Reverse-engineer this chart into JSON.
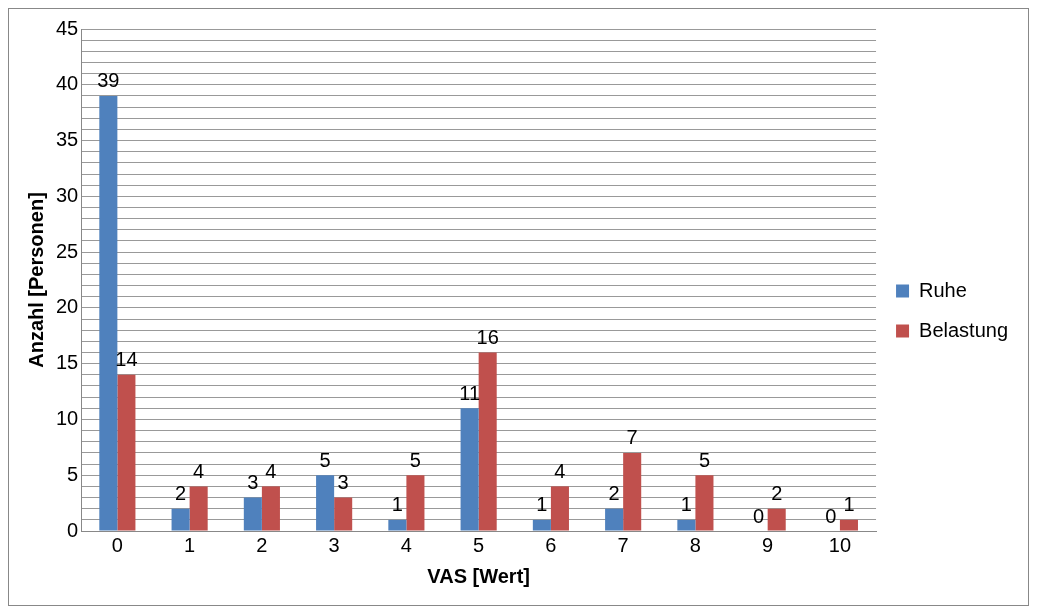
{
  "chart_data": {
    "type": "bar",
    "xlabel": "VAS [Wert]",
    "ylabel": "Anzahl [Personen]",
    "categories": [
      "0",
      "1",
      "2",
      "3",
      "4",
      "5",
      "6",
      "7",
      "8",
      "9",
      "10"
    ],
    "series": [
      {
        "name": "Ruhe",
        "color": "#4f81bd",
        "values": [
          39,
          2,
          3,
          5,
          1,
          11,
          1,
          2,
          1,
          0,
          0
        ]
      },
      {
        "name": "Belastung",
        "color": "#c0504d",
        "values": [
          14,
          4,
          4,
          3,
          5,
          16,
          4,
          7,
          5,
          2,
          1
        ]
      }
    ],
    "ylim": [
      0,
      45
    ],
    "yticks": [
      0,
      {
        "value": 1,
        "label": null
      },
      {
        "value": 2,
        "label": null
      },
      {
        "value": 3,
        "label": null
      },
      {
        "value": 4,
        "label": null
      },
      5,
      {
        "value": 6,
        "label": null
      },
      {
        "value": 7,
        "label": null
      },
      {
        "value": 8,
        "label": null
      },
      {
        "value": 9,
        "label": null
      },
      10,
      {
        "value": 11,
        "label": null
      },
      {
        "value": 12,
        "label": null
      },
      {
        "value": 13,
        "label": null
      },
      {
        "value": 14,
        "label": null
      },
      15,
      {
        "value": 16,
        "label": null
      },
      {
        "value": 17,
        "label": null
      },
      {
        "value": 18,
        "label": null
      },
      {
        "value": 19,
        "label": null
      },
      20,
      {
        "value": 21,
        "label": null
      },
      {
        "value": 22,
        "label": null
      },
      {
        "value": 23,
        "label": null
      },
      {
        "value": 24,
        "label": null
      },
      25,
      {
        "value": 26,
        "label": null
      },
      {
        "value": 27,
        "label": null
      },
      {
        "value": 28,
        "label": null
      },
      {
        "value": 29,
        "label": null
      },
      30,
      {
        "value": 31,
        "label": null
      },
      {
        "value": 32,
        "label": null
      },
      {
        "value": 33,
        "label": null
      },
      {
        "value": 34,
        "label": null
      },
      35,
      {
        "value": 36,
        "label": null
      },
      {
        "value": 37,
        "label": null
      },
      {
        "value": 38,
        "label": null
      },
      {
        "value": 39,
        "label": null
      },
      40,
      {
        "value": 41,
        "label": null
      },
      {
        "value": 42,
        "label": null
      },
      {
        "value": 43,
        "label": null
      },
      {
        "value": 44,
        "label": null
      },
      45
    ],
    "grid": "y",
    "legend": "right",
    "data_labels": true
  }
}
